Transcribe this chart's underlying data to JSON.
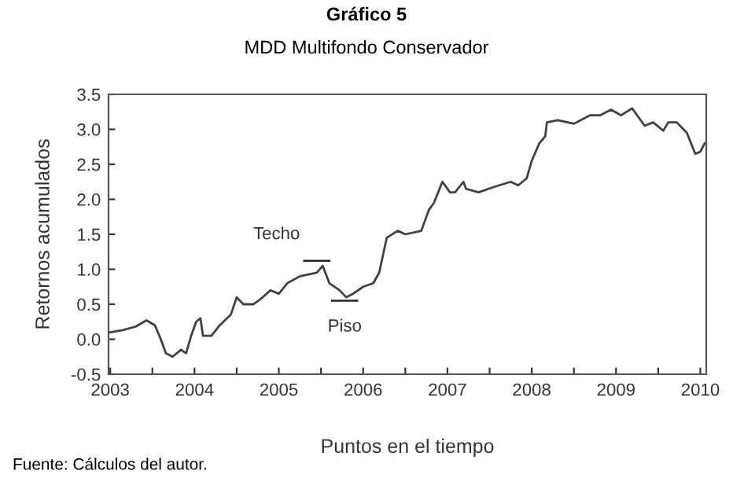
{
  "chart_data": {
    "type": "line",
    "title": "Gráfico 5",
    "subtitle": "MDD Multifondo Conservador",
    "xlabel": "Puntos en el tiempo",
    "ylabel": "Retornos acumulados",
    "x": [
      2003.0,
      2003.15,
      2003.3,
      2003.43,
      2003.53,
      2003.6,
      2003.66,
      2003.74,
      2003.84,
      2003.9,
      2003.96,
      2004.02,
      2004.07,
      2004.1,
      2004.2,
      2004.3,
      2004.43,
      2004.5,
      2004.58,
      2004.7,
      2004.81,
      2004.9,
      2005.0,
      2005.1,
      2005.25,
      2005.45,
      2005.52,
      2005.6,
      2005.72,
      2005.8,
      2005.88,
      2006.0,
      2006.12,
      2006.19,
      2006.28,
      2006.41,
      2006.5,
      2006.69,
      2006.78,
      2006.84,
      2006.94,
      2007.03,
      2007.09,
      2007.19,
      2007.22,
      2007.37,
      2007.56,
      2007.75,
      2007.84,
      2007.94,
      2008.0,
      2008.09,
      2008.16,
      2008.18,
      2008.31,
      2008.5,
      2008.69,
      2008.81,
      2008.94,
      2009.06,
      2009.19,
      2009.34,
      2009.44,
      2009.56,
      2009.62,
      2009.72,
      2009.84,
      2009.94,
      2010.0,
      2010.05
    ],
    "series": [
      {
        "color": "#404040",
        "values": [
          0.1,
          0.13,
          0.18,
          0.27,
          0.2,
          0.0,
          -0.2,
          -0.25,
          -0.15,
          -0.2,
          0.05,
          0.25,
          0.3,
          0.05,
          0.05,
          0.2,
          0.35,
          0.6,
          0.5,
          0.5,
          0.6,
          0.7,
          0.65,
          0.8,
          0.9,
          0.95,
          1.05,
          0.8,
          0.7,
          0.6,
          0.65,
          0.75,
          0.8,
          0.95,
          1.45,
          1.55,
          1.5,
          1.55,
          1.85,
          1.95,
          2.25,
          2.1,
          2.1,
          2.25,
          2.15,
          2.1,
          2.18,
          2.25,
          2.2,
          2.3,
          2.55,
          2.8,
          2.9,
          3.1,
          3.13,
          3.08,
          3.2,
          3.2,
          3.28,
          3.2,
          3.3,
          3.05,
          3.1,
          2.98,
          3.1,
          3.1,
          2.95,
          2.65,
          2.68,
          2.8
        ]
      }
    ],
    "xlim": [
      2002.98,
      2010.07
    ],
    "ylim": [
      -0.5,
      3.5
    ],
    "xticks": [
      2003,
      {
        "value": 2003.5,
        "label": null
      },
      2004,
      {
        "value": 2004.5,
        "label": null
      },
      2005,
      {
        "value": 2005.5,
        "label": null
      },
      2006,
      {
        "value": 2006.5,
        "label": null
      },
      2007,
      {
        "value": 2007.5,
        "label": null
      },
      2008,
      {
        "value": 2008.5,
        "label": null
      },
      2009,
      {
        "value": 2009.5,
        "label": null
      },
      2010
    ],
    "yticks": [
      {
        "value": -0.5,
        "label": "-0.5"
      },
      {
        "value": 0,
        "label": "0.0"
      },
      {
        "value": 0.5,
        "label": "0.5"
      },
      {
        "value": 1,
        "label": "1.0"
      },
      {
        "value": 1.5,
        "label": "1.5"
      },
      {
        "value": 2,
        "label": "2.0"
      },
      {
        "value": 2.5,
        "label": "2.5"
      },
      {
        "value": 3,
        "label": "3.0"
      },
      {
        "value": 3.5,
        "label": "3.5"
      }
    ],
    "annotations": [
      {
        "text": "Techo",
        "x": 2005.45,
        "y": 1.12
      },
      {
        "text": "Piso",
        "x": 2005.78,
        "y": 0.55
      },
      "Fuente: Cálculos del autor."
    ],
    "grid": false,
    "legend": false
  }
}
